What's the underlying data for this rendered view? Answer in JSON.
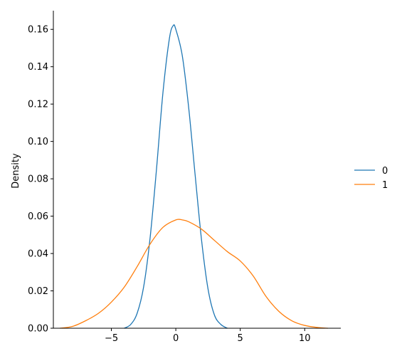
{
  "chart_data": {
    "type": "line",
    "title": "",
    "xlabel": "",
    "ylabel": "Density",
    "xlim": [
      -9.5,
      12.8
    ],
    "ylim": [
      0,
      0.17
    ],
    "xticks": [
      -5,
      0,
      5,
      10
    ],
    "xtick_labels": [
      "−5",
      "0",
      "5",
      "10"
    ],
    "yticks": [
      0.0,
      0.02,
      0.04,
      0.06,
      0.08,
      0.1,
      0.12,
      0.14,
      0.16
    ],
    "ytick_labels": [
      "0.00",
      "0.02",
      "0.04",
      "0.06",
      "0.08",
      "0.10",
      "0.12",
      "0.14",
      "0.16"
    ],
    "grid": false,
    "legend": {
      "placement": "right",
      "title": ""
    },
    "series": [
      {
        "name": "0",
        "color": "#1f77b4",
        "x": [
          -4.0,
          -3.5,
          -3.0,
          -2.5,
          -2.0,
          -1.5,
          -1.0,
          -0.5,
          -0.2,
          0.0,
          0.5,
          1.0,
          1.5,
          2.0,
          2.5,
          3.0,
          3.5,
          4.0
        ],
        "y": [
          0.0,
          0.002,
          0.008,
          0.022,
          0.048,
          0.085,
          0.126,
          0.155,
          0.162,
          0.16,
          0.146,
          0.118,
          0.082,
          0.047,
          0.021,
          0.007,
          0.002,
          0.0
        ]
      },
      {
        "name": "1",
        "color": "#ff7f0e",
        "x": [
          -9.0,
          -8.0,
          -7.0,
          -6.0,
          -5.0,
          -4.0,
          -3.0,
          -2.0,
          -1.0,
          0.0,
          0.5,
          1.0,
          2.0,
          3.0,
          4.0,
          5.0,
          6.0,
          7.0,
          8.0,
          9.0,
          10.0,
          11.0,
          11.8
        ],
        "y": [
          0.0,
          0.001,
          0.004,
          0.008,
          0.014,
          0.022,
          0.033,
          0.045,
          0.054,
          0.058,
          0.058,
          0.057,
          0.053,
          0.047,
          0.041,
          0.036,
          0.028,
          0.017,
          0.009,
          0.004,
          0.0015,
          0.0004,
          0.0
        ]
      }
    ]
  }
}
